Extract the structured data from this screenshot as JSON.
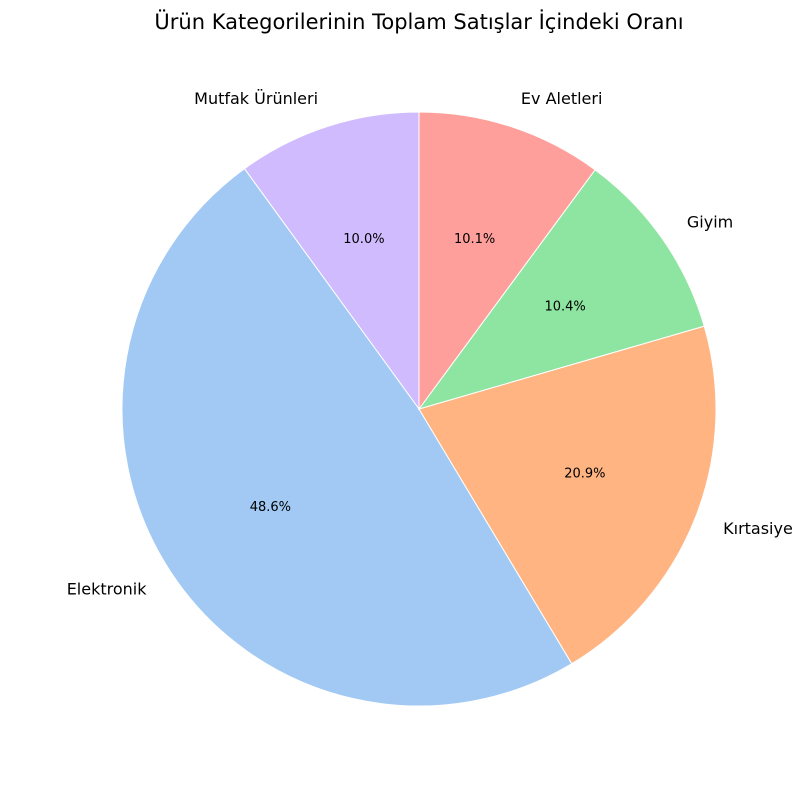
{
  "chart_data": {
    "type": "pie",
    "title": "Ürün Kategorilerinin Toplam Satışlar İçindeki Oranı",
    "start_angle_deg": 90,
    "direction": "counterclockwise",
    "slices": [
      {
        "label": "Mutfak Ürünleri",
        "value": 10.0,
        "pct_text": "10.0%",
        "color": "#D0BBFF"
      },
      {
        "label": "Elektronik",
        "value": 48.6,
        "pct_text": "48.6%",
        "color": "#A1C9F4"
      },
      {
        "label": "Kırtasiye",
        "value": 20.9,
        "pct_text": "20.9%",
        "color": "#FFB482"
      },
      {
        "label": "Giyim",
        "value": 10.4,
        "pct_text": "10.4%",
        "color": "#8DE5A1"
      },
      {
        "label": "Ev Aletleri",
        "value": 10.1,
        "pct_text": "10.1%",
        "color": "#FF9F9B"
      }
    ]
  }
}
